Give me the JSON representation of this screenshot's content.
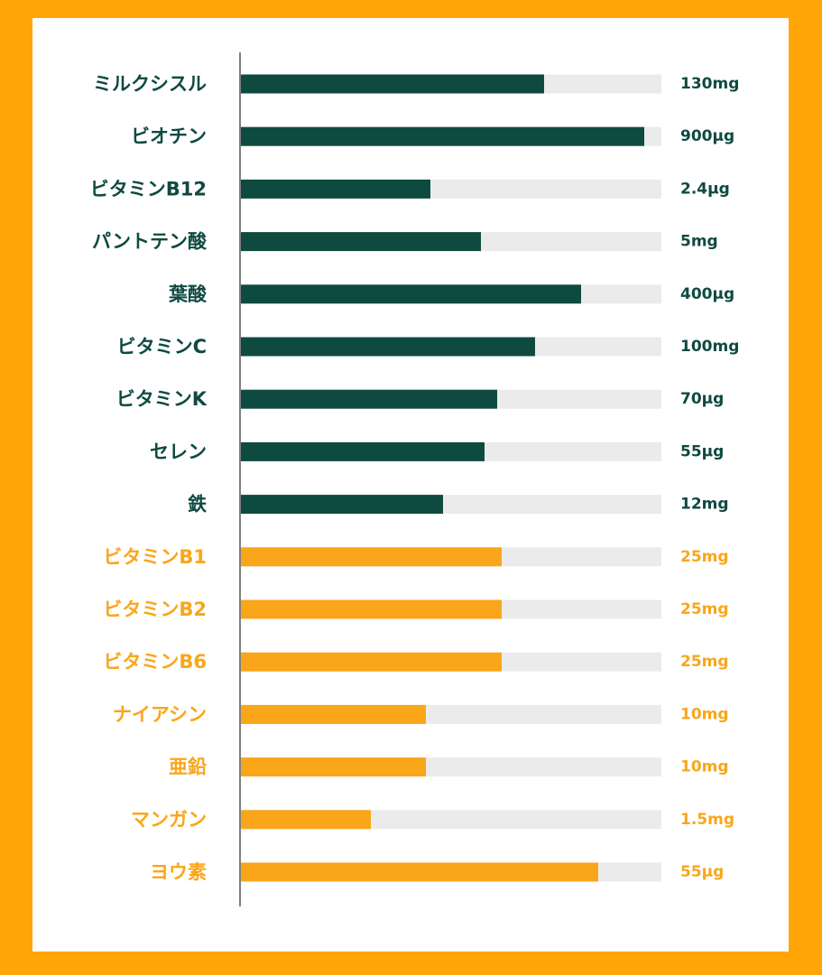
{
  "colors": {
    "background": "#FFA606",
    "panel": "#FFFFFF",
    "dark_series": "#0F4A41",
    "orange_series": "#F9A61A",
    "track": "#EBEBEB",
    "axis": "#555555"
  },
  "chart_data": {
    "type": "bar",
    "orientation": "horizontal",
    "title": "",
    "xlabel": "",
    "ylabel": "",
    "xlim": [
      0,
      1
    ],
    "grid": false,
    "items": [
      {
        "label": "ミルクシスル",
        "value_label": "130mg",
        "fill": 0.72,
        "group": "dark"
      },
      {
        "label": "ビオチン",
        "value_label": "900μg",
        "fill": 0.96,
        "group": "dark"
      },
      {
        "label": "ビタミンB12",
        "value_label": "2.4μg",
        "fill": 0.45,
        "group": "dark"
      },
      {
        "label": "パントテン酸",
        "value_label": "5mg",
        "fill": 0.57,
        "group": "dark"
      },
      {
        "label": "葉酸",
        "value_label": "400μg",
        "fill": 0.81,
        "group": "dark"
      },
      {
        "label": "ビタミンC",
        "value_label": "100mg",
        "fill": 0.7,
        "group": "dark"
      },
      {
        "label": "ビタミンK",
        "value_label": "70μg",
        "fill": 0.61,
        "group": "dark"
      },
      {
        "label": "セレン",
        "value_label": "55μg",
        "fill": 0.58,
        "group": "dark"
      },
      {
        "label": "鉄",
        "value_label": "12mg",
        "fill": 0.48,
        "group": "dark"
      },
      {
        "label": "ビタミンB1",
        "value_label": "25mg",
        "fill": 0.62,
        "group": "orange"
      },
      {
        "label": "ビタミンB2",
        "value_label": "25mg",
        "fill": 0.62,
        "group": "orange"
      },
      {
        "label": "ビタミンB6",
        "value_label": "25mg",
        "fill": 0.62,
        "group": "orange"
      },
      {
        "label": "ナイアシン",
        "value_label": "10mg",
        "fill": 0.44,
        "group": "orange"
      },
      {
        "label": "亜鉛",
        "value_label": "10mg",
        "fill": 0.44,
        "group": "orange"
      },
      {
        "label": "マンガン",
        "value_label": "1.5mg",
        "fill": 0.31,
        "group": "orange"
      },
      {
        "label": "ヨウ素",
        "value_label": "55μg",
        "fill": 0.85,
        "group": "orange"
      }
    ]
  }
}
